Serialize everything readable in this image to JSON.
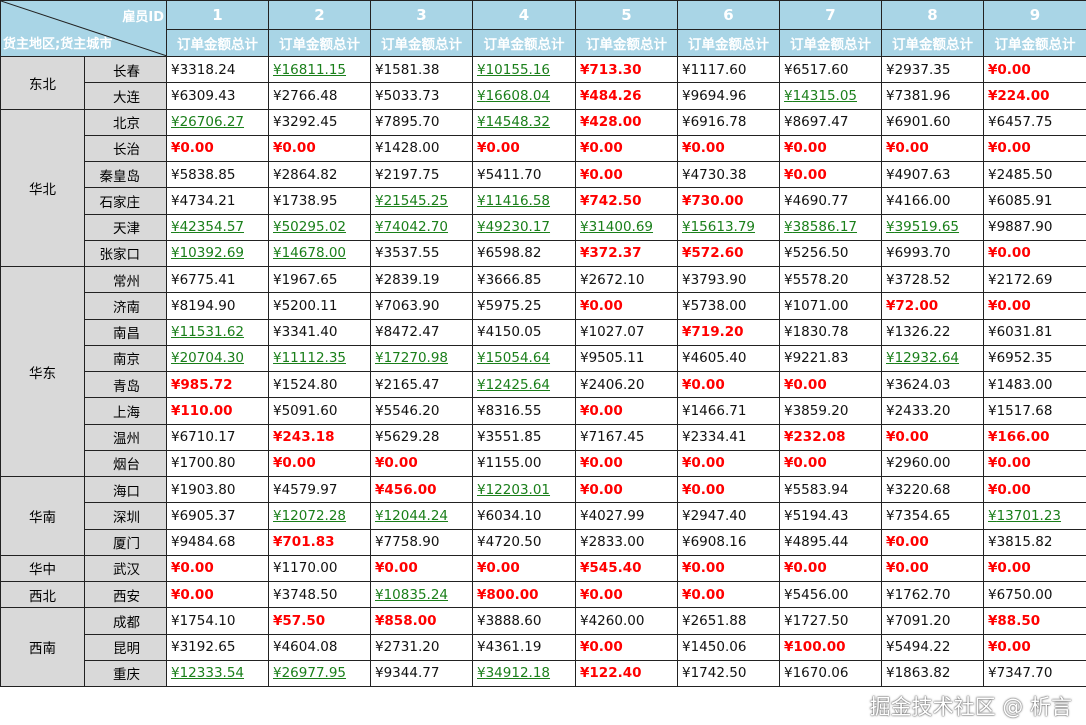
{
  "header": {
    "column_field": "雇员ID",
    "row_fields": "货主地区;货主城市",
    "employee_ids": [
      "1",
      "2",
      "3",
      "4",
      "5",
      "6",
      "7",
      "8",
      "9"
    ],
    "measure_label": "订单金额总计"
  },
  "currency_symbol": "¥",
  "colors": {
    "header_bg": "#a9d5e6",
    "label_bg": "#d9d9d9",
    "high_value": "#1a7f1a",
    "low_value": "#ff0000"
  },
  "regions": [
    {
      "name": "东北",
      "cities": [
        {
          "name": "长春",
          "values": [
            "3318.24",
            "16811.15",
            "1581.38",
            "10155.16",
            "713.30",
            "1117.60",
            "6517.60",
            "2937.35",
            "0.00"
          ]
        },
        {
          "name": "大连",
          "values": [
            "6309.43",
            "2766.48",
            "5033.73",
            "16608.04",
            "484.26",
            "9694.96",
            "14315.05",
            "7381.96",
            "224.00"
          ]
        }
      ]
    },
    {
      "name": "华北",
      "cities": [
        {
          "name": "北京",
          "values": [
            "26706.27",
            "3292.45",
            "7895.70",
            "14548.32",
            "428.00",
            "6916.78",
            "8697.47",
            "6901.60",
            "6457.75"
          ]
        },
        {
          "name": "长治",
          "values": [
            "0.00",
            "0.00",
            "1428.00",
            "0.00",
            "0.00",
            "0.00",
            "0.00",
            "0.00",
            "0.00"
          ]
        },
        {
          "name": "秦皇岛",
          "values": [
            "5838.85",
            "2864.82",
            "2197.75",
            "5411.70",
            "0.00",
            "4730.38",
            "0.00",
            "4907.63",
            "2485.50"
          ]
        },
        {
          "name": "石家庄",
          "values": [
            "4734.21",
            "1738.95",
            "21545.25",
            "11416.58",
            "742.50",
            "730.00",
            "4690.77",
            "4166.00",
            "6085.91"
          ]
        },
        {
          "name": "天津",
          "values": [
            "42354.57",
            "50295.02",
            "74042.70",
            "49230.17",
            "31400.69",
            "15613.79",
            "38586.17",
            "39519.65",
            "9887.90"
          ]
        },
        {
          "name": "张家口",
          "values": [
            "10392.69",
            "14678.00",
            "3537.55",
            "6598.82",
            "372.37",
            "572.60",
            "5256.50",
            "6993.70",
            "0.00"
          ]
        }
      ]
    },
    {
      "name": "华东",
      "cities": [
        {
          "name": "常州",
          "values": [
            "6775.41",
            "1967.65",
            "2839.19",
            "3666.85",
            "2672.10",
            "3793.90",
            "5578.20",
            "3728.52",
            "2172.69"
          ]
        },
        {
          "name": "济南",
          "values": [
            "8194.90",
            "5200.11",
            "7063.90",
            "5975.25",
            "0.00",
            "5738.00",
            "1071.00",
            "72.00",
            "0.00"
          ]
        },
        {
          "name": "南昌",
          "values": [
            "11531.62",
            "3341.40",
            "8472.47",
            "4150.05",
            "1027.07",
            "719.20",
            "1830.78",
            "1326.22",
            "6031.81"
          ]
        },
        {
          "name": "南京",
          "values": [
            "20704.30",
            "11112.35",
            "17270.98",
            "15054.64",
            "9505.11",
            "4605.40",
            "9221.83",
            "12932.64",
            "6952.35"
          ]
        },
        {
          "name": "青岛",
          "values": [
            "985.72",
            "1524.80",
            "2165.47",
            "12425.64",
            "2406.20",
            "0.00",
            "0.00",
            "3624.03",
            "1483.00"
          ]
        },
        {
          "name": "上海",
          "values": [
            "110.00",
            "5091.60",
            "5546.20",
            "8316.55",
            "0.00",
            "1466.71",
            "3859.20",
            "2433.20",
            "1517.68"
          ]
        },
        {
          "name": "温州",
          "values": [
            "6710.17",
            "243.18",
            "5629.28",
            "3551.85",
            "7167.45",
            "2334.41",
            "232.08",
            "0.00",
            "166.00"
          ]
        },
        {
          "name": "烟台",
          "values": [
            "1700.80",
            "0.00",
            "0.00",
            "1155.00",
            "0.00",
            "0.00",
            "0.00",
            "2960.00",
            "0.00"
          ]
        }
      ]
    },
    {
      "name": "华南",
      "cities": [
        {
          "name": "海口",
          "values": [
            "1903.80",
            "4579.97",
            "456.00",
            "12203.01",
            "0.00",
            "0.00",
            "5583.94",
            "3220.68",
            "0.00"
          ]
        },
        {
          "name": "深圳",
          "values": [
            "6905.37",
            "12072.28",
            "12044.24",
            "6034.10",
            "4027.99",
            "2947.40",
            "5194.43",
            "7354.65",
            "13701.23"
          ]
        },
        {
          "name": "厦门",
          "values": [
            "9484.68",
            "701.83",
            "7758.90",
            "4720.50",
            "2833.00",
            "6908.16",
            "4895.44",
            "0.00",
            "3815.82"
          ]
        }
      ]
    },
    {
      "name": "华中",
      "cities": [
        {
          "name": "武汉",
          "values": [
            "0.00",
            "1170.00",
            "0.00",
            "0.00",
            "545.40",
            "0.00",
            "0.00",
            "0.00",
            "0.00"
          ]
        }
      ]
    },
    {
      "name": "西北",
      "cities": [
        {
          "name": "西安",
          "values": [
            "0.00",
            "3748.50",
            "10835.24",
            "800.00",
            "0.00",
            "0.00",
            "5456.00",
            "1762.70",
            "6750.00"
          ]
        }
      ]
    },
    {
      "name": "西南",
      "cities": [
        {
          "name": "成都",
          "values": [
            "1754.10",
            "57.50",
            "858.00",
            "3888.60",
            "4260.00",
            "2651.88",
            "1727.50",
            "7091.20",
            "88.50"
          ]
        },
        {
          "name": "昆明",
          "values": [
            "3192.65",
            "4604.08",
            "2731.20",
            "4361.19",
            "0.00",
            "1450.06",
            "100.00",
            "5494.22",
            "0.00"
          ]
        },
        {
          "name": "重庆",
          "values": [
            "12333.54",
            "26977.95",
            "9344.77",
            "34912.18",
            "122.40",
            "1742.50",
            "1670.06",
            "1863.82",
            "7347.70"
          ]
        }
      ]
    }
  ],
  "watermark": "掘金技术社区 @ 析言"
}
